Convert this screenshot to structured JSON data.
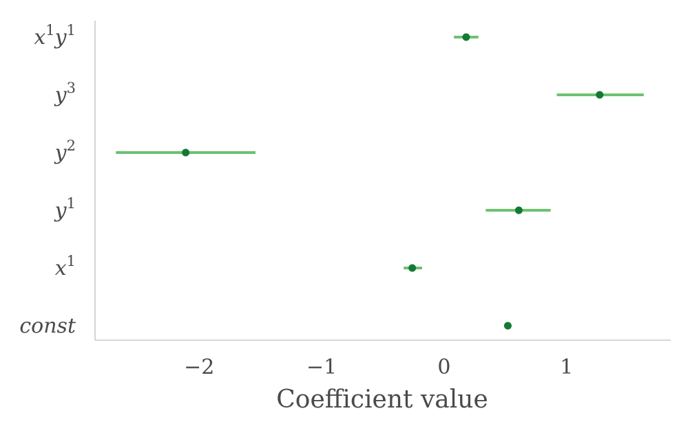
{
  "chart_data": {
    "type": "scatter",
    "title": "",
    "xlabel": "Coefficient value",
    "ylabel": "",
    "xlim": [
      -2.85,
      1.85
    ],
    "xticks": [
      -2,
      -1,
      0,
      1
    ],
    "xtick_labels": [
      "−2",
      "−1",
      "0",
      "1"
    ],
    "grid": false,
    "categories": [
      {
        "base": "x",
        "sup": "1",
        "base2": "y",
        "sup2": "1"
      },
      {
        "base": "y",
        "sup": "3"
      },
      {
        "base": "y",
        "sup": "2"
      },
      {
        "base": "y",
        "sup": "1"
      },
      {
        "base": "x",
        "sup": "1"
      },
      {
        "base": "const"
      }
    ],
    "series": [
      {
        "values": [
          {
            "estimate": 0.18,
            "ci_low": 0.08,
            "ci_high": 0.28
          },
          {
            "estimate": 1.27,
            "ci_low": 0.92,
            "ci_high": 1.63
          },
          {
            "estimate": -2.11,
            "ci_low": -2.68,
            "ci_high": -1.54
          },
          {
            "estimate": 0.61,
            "ci_low": 0.34,
            "ci_high": 0.87
          },
          {
            "estimate": -0.26,
            "ci_low": -0.33,
            "ci_high": -0.18
          },
          {
            "estimate": 0.52,
            "ci_low": 0.5,
            "ci_high": 0.55
          }
        ]
      }
    ],
    "colors": {
      "point": "#137a35",
      "interval": "#6cc26f",
      "axis": "#bdbdbd",
      "text": "#4a4a4a"
    }
  }
}
